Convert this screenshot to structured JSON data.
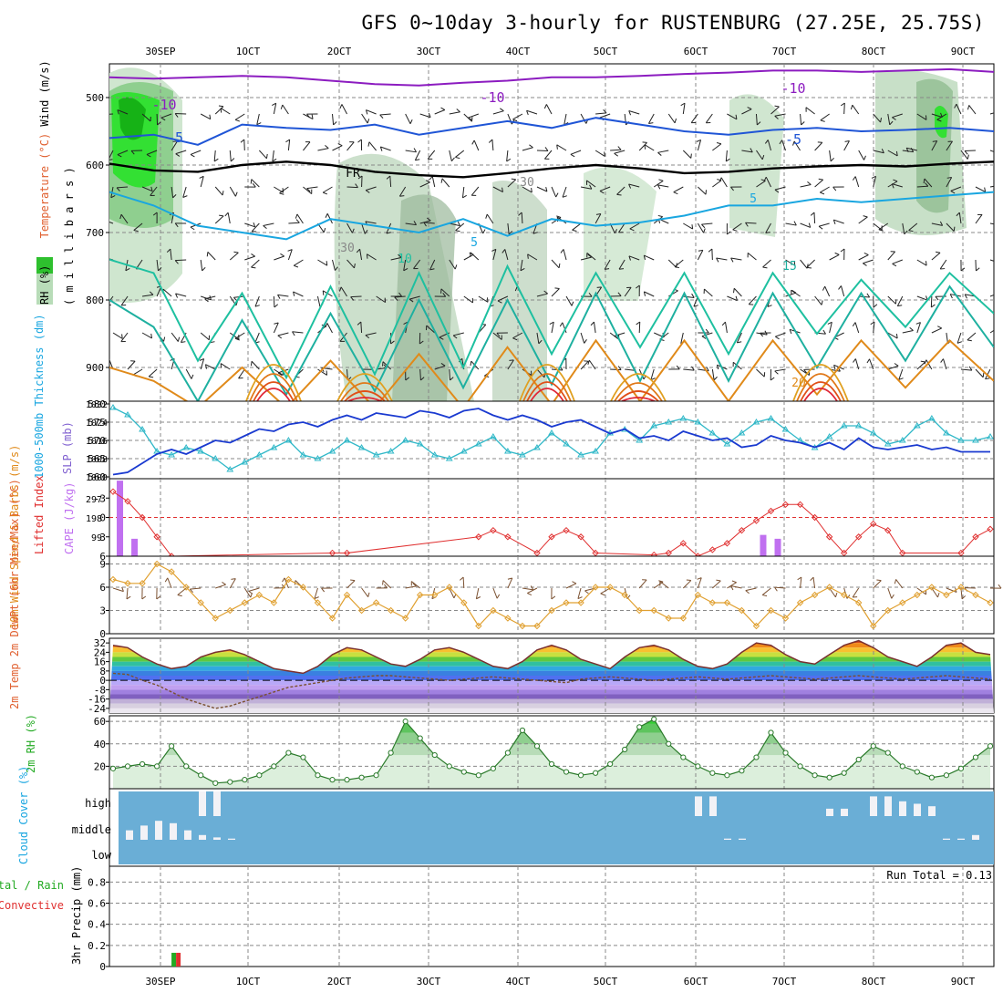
{
  "title": "GFS 0~10day 3-hourly for RUSTENBURG (27.25E, 25.75S)",
  "dates": [
    "30SEP",
    "1OCT",
    "2OCT",
    "3OCT",
    "4OCT",
    "5OCT",
    "6OCT",
    "7OCT",
    "8OCT",
    "9OCT"
  ],
  "colors": {
    "purple": "#8c1cc0",
    "blue": "#1f55d6",
    "lightblue": "#19a6e0",
    "teal": "#1ec0a0",
    "orange": "#e08a1a",
    "red": "#e0283c",
    "rh_green": "#5ec45e",
    "rh_light": "#dcefdc",
    "cloud": "#6aaed6",
    "cape": "#c070f0",
    "lifted": "#e03030",
    "wind10": "#e0a030",
    "slp": "#1a3ad0",
    "thick": "#30b8c8"
  },
  "upper": {
    "ylabel_parts": [
      "RH (%)",
      "Temperature (°C)",
      "Wind (m/s)"
    ],
    "ylabel2": "( m i l l i b a r s )",
    "pressure_ticks": [
      "500",
      "600",
      "700",
      "800",
      "900"
    ],
    "contour_labels": [
      "-10",
      "-10",
      "-10",
      "-5",
      "-5",
      "FR",
      "5",
      "5",
      "10",
      "15",
      "20",
      "30",
      "30"
    ],
    "chart_data": {
      "type": "heatmap",
      "xlabel": "",
      "ylabel": "millibars",
      "ylim": [
        950,
        450
      ],
      "isotherms": [
        {
          "name": "-10",
          "p": [
            470,
            472,
            470,
            468,
            470,
            475,
            480,
            482,
            478,
            475,
            470,
            470,
            468,
            465,
            463,
            460,
            460,
            462,
            460,
            458,
            462
          ]
        },
        {
          "name": "-5",
          "p": [
            560,
            555,
            570,
            540,
            545,
            548,
            540,
            555,
            545,
            535,
            545,
            530,
            540,
            550,
            555,
            548,
            545,
            550,
            548,
            545,
            550
          ]
        },
        {
          "name": "FR",
          "p": [
            598,
            608,
            610,
            600,
            595,
            600,
            610,
            615,
            618,
            612,
            605,
            600,
            605,
            612,
            610,
            605,
            602,
            600,
            602,
            598,
            595
          ]
        },
        {
          "name": "5",
          "p": [
            640,
            660,
            690,
            700,
            710,
            680,
            690,
            700,
            680,
            705,
            680,
            690,
            685,
            675,
            660,
            660,
            650,
            655,
            650,
            645,
            640
          ]
        },
        {
          "name": "10",
          "p": [
            740,
            760,
            890,
            790,
            915,
            780,
            910,
            760,
            900,
            750,
            880,
            760,
            870,
            760,
            880,
            760,
            850,
            770,
            840,
            760,
            820
          ]
        },
        {
          "name": "15",
          "p": [
            800,
            840,
            950,
            830,
            940,
            820,
            935,
            800,
            930,
            800,
            925,
            790,
            920,
            790,
            920,
            790,
            900,
            790,
            890,
            780,
            870
          ]
        },
        {
          "name": "20",
          "p": [
            900,
            920,
            960,
            900,
            960,
            890,
            960,
            880,
            960,
            870,
            955,
            860,
            950,
            860,
            950,
            860,
            940,
            860,
            930,
            860,
            920
          ]
        }
      ]
    }
  },
  "p2": {
    "ylabel": "1000-500mb Thickness (dm)",
    "ylabel_r": "SLP (mb)",
    "left_ticks": [
      "560",
      "565",
      "570",
      "575",
      "580"
    ],
    "right_ticks": [
      "1000",
      "1008",
      "1016",
      "1024",
      "1032"
    ],
    "chart_data": {
      "type": "line",
      "ylim": [
        560,
        580
      ],
      "ylim_right": [
        1000,
        1032
      ],
      "series": [
        {
          "name": "1000-500mb Thickness (dm)",
          "axis": "left",
          "values": [
            579,
            577,
            573,
            567,
            566,
            568,
            567,
            565,
            562,
            564,
            566,
            568,
            570,
            566,
            565,
            567,
            570,
            568,
            566,
            567,
            570,
            569,
            566,
            565,
            567,
            569,
            571,
            567,
            566,
            568,
            572,
            569,
            566,
            567,
            572,
            573,
            570,
            574,
            575,
            576,
            575,
            572,
            569,
            572,
            575,
            576,
            573,
            570,
            568,
            571,
            574,
            574,
            572,
            569,
            570,
            574,
            576,
            572,
            570,
            570,
            571
          ]
        },
        {
          "name": "SLP (mb)",
          "axis": "right",
          "values": [
            1001,
            1002,
            1006,
            1010,
            1012,
            1010,
            1013,
            1016,
            1015,
            1018,
            1021,
            1020,
            1023,
            1024,
            1022,
            1025,
            1027,
            1025,
            1028,
            1027,
            1026,
            1029,
            1028,
            1026,
            1029,
            1030,
            1027,
            1025,
            1027,
            1025,
            1022,
            1024,
            1025,
            1022,
            1019,
            1021,
            1017,
            1018,
            1016,
            1020,
            1018,
            1016,
            1017,
            1013,
            1014,
            1018,
            1016,
            1015,
            1013,
            1015,
            1012,
            1017,
            1013,
            1012,
            1013,
            1014,
            1012,
            1013,
            1011,
            1011,
            1011
          ]
        }
      ]
    }
  },
  "p3": {
    "ylabel": "Lifted Index",
    "ylabel_r": "CAPE (J/kg)",
    "left_ticks": [
      "-3",
      "0",
      "3",
      "6"
    ],
    "right_ticks": [
      "99",
      "198",
      "297"
    ],
    "chart_data": {
      "type": "bar",
      "ylim": [
        6,
        -6
      ],
      "ylim_right": [
        0,
        400
      ],
      "series": [
        {
          "name": "CAPE (J/kg)",
          "kind": "bar",
          "points": [
            [
              0.5,
              390
            ],
            [
              1.5,
              90
            ],
            [
              44.5,
              110
            ],
            [
              45.5,
              90
            ]
          ]
        },
        {
          "name": "Lifted Index",
          "kind": "line",
          "points": [
            [
              0,
              -4
            ],
            [
              1,
              -2.5
            ],
            [
              2,
              0
            ],
            [
              3,
              3
            ],
            [
              4,
              6
            ],
            [
              15,
              5.5
            ],
            [
              16,
              5.5
            ],
            [
              25,
              3
            ],
            [
              26,
              2
            ],
            [
              27,
              3
            ],
            [
              29,
              5.5
            ],
            [
              30,
              3
            ],
            [
              31,
              2
            ],
            [
              32,
              3
            ],
            [
              33,
              5.5
            ],
            [
              37,
              5.8
            ],
            [
              38,
              5.5
            ],
            [
              39,
              4
            ],
            [
              40,
              6
            ],
            [
              41,
              5
            ],
            [
              42,
              4
            ],
            [
              43,
              2
            ],
            [
              44,
              0.5
            ],
            [
              45,
              -1
            ],
            [
              46,
              -2
            ],
            [
              47,
              -2
            ],
            [
              48,
              0
            ],
            [
              49,
              3
            ],
            [
              50,
              5.5
            ],
            [
              51,
              3
            ],
            [
              52,
              1
            ],
            [
              53,
              2
            ],
            [
              54,
              5.5
            ],
            [
              58,
              5.5
            ],
            [
              59,
              3
            ],
            [
              60,
              1.8
            ]
          ]
        }
      ]
    }
  },
  "p4": {
    "ylabel": "10m Wind Speed & Barbs (m/s)",
    "left_ticks": [
      "0",
      "3",
      "6",
      "9"
    ],
    "chart_data": {
      "type": "line",
      "ylim": [
        0,
        10
      ],
      "series": [
        {
          "name": "10m Wind Speed",
          "values": [
            7,
            6.5,
            6.5,
            9,
            8,
            6,
            4,
            2,
            3,
            4,
            5,
            4,
            7,
            6,
            4,
            2,
            5,
            3,
            4,
            3,
            2,
            5,
            5,
            6,
            4,
            1,
            3,
            2,
            1,
            1,
            3,
            4,
            4,
            6,
            6,
            5,
            3,
            3,
            2,
            2,
            5,
            4,
            4,
            3,
            1,
            3,
            2,
            4,
            5,
            6,
            5,
            4,
            1,
            3,
            4,
            5,
            6,
            5,
            6,
            5,
            4
          ]
        }
      ]
    }
  },
  "p5": {
    "ylabel": "2m Temp 2m DewPt (6hr Min/Max) (°C)",
    "left_ticks": [
      "32",
      "24",
      "16",
      "8",
      "0",
      "-8",
      "-16",
      "-24"
    ],
    "chart_data": {
      "type": "area",
      "ylim": [
        -28,
        36
      ],
      "series": [
        {
          "name": "2m Temp",
          "values": [
            30,
            28,
            20,
            14,
            10,
            12,
            20,
            24,
            26,
            22,
            16,
            10,
            8,
            6,
            12,
            22,
            28,
            26,
            20,
            14,
            12,
            18,
            26,
            28,
            24,
            18,
            12,
            10,
            16,
            26,
            30,
            26,
            18,
            14,
            10,
            20,
            28,
            30,
            26,
            18,
            12,
            10,
            14,
            24,
            32,
            30,
            22,
            16,
            14,
            22,
            30,
            34,
            28,
            20,
            16,
            12,
            20,
            30,
            32,
            24,
            22
          ]
        },
        {
          "name": "2m DewPt",
          "values": [
            6,
            5,
            0,
            -4,
            -10,
            -16,
            -20,
            -24,
            -22,
            -18,
            -14,
            -10,
            -6,
            -4,
            -2,
            0,
            2,
            3,
            4,
            4,
            3,
            2,
            1,
            0,
            1,
            2,
            3,
            2,
            1,
            0,
            -1,
            -2,
            1,
            2,
            3,
            2,
            1,
            0,
            1,
            2,
            3,
            2,
            1,
            2,
            3,
            4,
            3,
            2,
            1,
            2,
            3,
            4,
            3,
            2,
            1,
            2,
            3,
            4,
            3,
            2,
            1
          ]
        }
      ]
    }
  },
  "p6": {
    "ylabel": "2m RH (%)",
    "left_ticks": [
      "20",
      "40",
      "60"
    ],
    "chart_data": {
      "type": "area",
      "ylim": [
        0,
        65
      ],
      "series": [
        {
          "name": "2m RH",
          "values": [
            18,
            20,
            22,
            20,
            38,
            20,
            12,
            5,
            6,
            8,
            12,
            20,
            32,
            28,
            12,
            8,
            8,
            10,
            12,
            32,
            60,
            45,
            30,
            20,
            15,
            12,
            18,
            32,
            52,
            38,
            22,
            15,
            12,
            14,
            22,
            35,
            55,
            62,
            40,
            28,
            20,
            14,
            12,
            16,
            28,
            50,
            32,
            20,
            12,
            10,
            14,
            26,
            38,
            32,
            20,
            15,
            10,
            12,
            18,
            28,
            38
          ]
        }
      ]
    }
  },
  "p7": {
    "ylabel": "Cloud Cover (%)",
    "levels": [
      "high",
      "middle",
      "low"
    ],
    "chart_data": {
      "type": "bar",
      "ylim": [
        0,
        100
      ],
      "series": [
        {
          "name": "high",
          "points": [
            [
              6,
              100
            ],
            [
              7,
              100
            ],
            [
              40,
              80
            ],
            [
              41,
              80
            ],
            [
              49,
              30
            ],
            [
              50,
              30
            ],
            [
              52,
              80
            ],
            [
              53,
              80
            ],
            [
              54,
              60
            ],
            [
              55,
              50
            ],
            [
              56,
              40
            ]
          ]
        },
        {
          "name": "middle",
          "points": [
            [
              1,
              40
            ],
            [
              2,
              60
            ],
            [
              3,
              80
            ],
            [
              4,
              70
            ],
            [
              5,
              40
            ],
            [
              6,
              20
            ],
            [
              7,
              10
            ],
            [
              8,
              5
            ],
            [
              42,
              5
            ],
            [
              43,
              5
            ],
            [
              57,
              5
            ],
            [
              58,
              5
            ],
            [
              59,
              20
            ]
          ]
        },
        {
          "name": "low",
          "points": []
        }
      ]
    }
  },
  "p8": {
    "ylabel": "3hr Precip (mm)",
    "ylabel2": "Total / Rain",
    "ylabel3": "Convective",
    "run_total": "Run Total = 0.13",
    "left_ticks": [
      "0",
      "0.2",
      "0.4",
      "0.6",
      "0.8"
    ],
    "chart_data": {
      "type": "bar",
      "ylim": [
        0,
        0.95
      ],
      "series": [
        {
          "name": "Total / Rain",
          "points": [
            [
              2.5,
              0.13
            ]
          ]
        },
        {
          "name": "Convective",
          "points": [
            [
              2.5,
              0.13
            ]
          ]
        }
      ]
    }
  }
}
